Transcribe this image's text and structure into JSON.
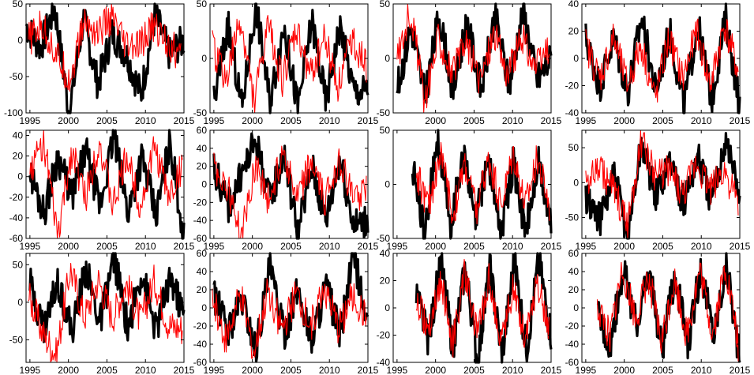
{
  "chart_data": [
    {
      "type": "line",
      "ylim": [
        -100,
        50
      ],
      "yticks": [
        -100,
        -50,
        0,
        50
      ],
      "xlim": [
        1994.5,
        2015
      ],
      "xticks": [
        1995,
        2000,
        2005,
        2010,
        2015
      ],
      "coverage": [
        [
          1994.5,
          2015
        ],
        [
          1994.8,
          2014.6
        ]
      ],
      "series": [
        {
          "color": "#000000",
          "values": [
            20,
            -10,
            45,
            -100,
            30,
            -60,
            10,
            -20,
            -75,
            35,
            -20,
            0
          ]
        },
        {
          "color": "#ff0000",
          "values": [
            0,
            20,
            -20,
            -55,
            25,
            10,
            30,
            -10,
            -10,
            20,
            0,
            -25
          ]
        }
      ]
    },
    {
      "type": "line",
      "ylim": [
        -50,
        50
      ],
      "yticks": [
        -50,
        0,
        50
      ],
      "xlim": [
        1994.5,
        2015
      ],
      "xticks": [
        1995,
        2000,
        2005,
        2010,
        2015
      ],
      "coverage": [
        [
          1995,
          2015
        ],
        [
          1994.8,
          2014.8
        ]
      ],
      "series": [
        {
          "color": "#000000",
          "values": [
            -40,
            30,
            -45,
            50,
            -40,
            30,
            -45,
            35,
            -40,
            30,
            -30,
            -30
          ]
        },
        {
          "color": "#ff0000",
          "values": [
            10,
            -20,
            35,
            -40,
            30,
            -20,
            25,
            -15,
            20,
            -25,
            20,
            -10
          ]
        }
      ]
    },
    {
      "type": "line",
      "ylim": [
        -50,
        50
      ],
      "yticks": [
        -50,
        0,
        50
      ],
      "xlim": [
        1994.5,
        2015
      ],
      "xticks": [
        2000,
        2005,
        2010,
        2015
      ],
      "coverage": [
        [
          1995,
          2015
        ],
        [
          1995,
          2014.8
        ]
      ],
      "series": [
        {
          "color": "#000000",
          "values": [
            -30,
            30,
            -35,
            40,
            -30,
            35,
            -30,
            40,
            -25,
            45,
            -20,
            0
          ]
        },
        {
          "color": "#ff0000",
          "values": [
            0,
            45,
            -40,
            20,
            -15,
            15,
            -20,
            25,
            -15,
            20,
            -10,
            10
          ]
        }
      ]
    },
    {
      "type": "line",
      "ylim": [
        -40,
        40
      ],
      "yticks": [
        -40,
        -20,
        0,
        20,
        40
      ],
      "xlim": [
        1994.5,
        2015
      ],
      "xticks": [
        1995,
        2000,
        2005,
        2010,
        2015
      ],
      "coverage": [
        [
          1995,
          2015
        ],
        [
          1995,
          2014.8
        ]
      ],
      "series": [
        {
          "color": "#000000",
          "values": [
            15,
            -20,
            15,
            -25,
            30,
            -25,
            20,
            -35,
            25,
            -30,
            30,
            -35
          ]
        },
        {
          "color": "#ff0000",
          "values": [
            10,
            -15,
            15,
            -20,
            10,
            -30,
            15,
            -15,
            20,
            -20,
            25,
            -10
          ]
        }
      ]
    },
    {
      "type": "line",
      "ylim": [
        -60,
        45
      ],
      "yticks": [
        -60,
        -40,
        -20,
        0,
        20,
        40
      ],
      "xlim": [
        1994.5,
        2015
      ],
      "xticks": [
        1995,
        2000,
        2005,
        2010,
        2015
      ],
      "coverage": [
        [
          1995,
          2015
        ],
        [
          1995,
          2014.8
        ]
      ],
      "series": [
        {
          "color": "#000000",
          "values": [
            5,
            -35,
            20,
            -20,
            25,
            -30,
            40,
            -35,
            20,
            -40,
            35,
            -60
          ]
        },
        {
          "color": "#ff0000",
          "values": [
            5,
            35,
            -60,
            25,
            -20,
            35,
            -30,
            20,
            -30,
            30,
            -20,
            10
          ]
        }
      ]
    },
    {
      "type": "line",
      "ylim": [
        -60,
        60
      ],
      "yticks": [
        -60,
        -40,
        -20,
        0,
        20,
        40,
        60
      ],
      "xlim": [
        1994.5,
        2015
      ],
      "xticks": [
        1995,
        2000,
        2005,
        2010,
        2015
      ],
      "coverage": [
        [
          1995,
          2015
        ],
        [
          1995,
          2014.8
        ]
      ],
      "series": [
        {
          "color": "#000000",
          "values": [
            20,
            -25,
            10,
            50,
            -20,
            35,
            -55,
            20,
            -40,
            30,
            -45,
            -40
          ]
        },
        {
          "color": "#ff0000",
          "values": [
            20,
            -5,
            -60,
            25,
            -20,
            40,
            -20,
            25,
            -20,
            30,
            -15,
            -5
          ]
        }
      ]
    },
    {
      "type": "line",
      "ylim": [
        -50,
        50
      ],
      "yticks": [
        -50,
        0,
        50
      ],
      "xlim": [
        1994.5,
        2015
      ],
      "xticks": [
        1995,
        2000,
        2005,
        2010,
        2015
      ],
      "coverage": [
        [
          1997,
          2015
        ],
        [
          1997.5,
          2014.8
        ]
      ],
      "series": [
        {
          "color": "#000000",
          "values": [
            15,
            -45,
            45,
            -40,
            30,
            -35,
            25,
            -45,
            20,
            -45,
            20,
            -40
          ]
        },
        {
          "color": "#ff0000",
          "values": [
            10,
            -20,
            30,
            -30,
            20,
            -25,
            25,
            -20,
            30,
            -20,
            25,
            -20
          ]
        }
      ]
    },
    {
      "type": "line",
      "ylim": [
        -80,
        75
      ],
      "yticks": [
        -50,
        0,
        50
      ],
      "xlim": [
        1994.5,
        2015
      ],
      "xticks": [
        1995,
        2000,
        2005,
        2010,
        2015
      ],
      "coverage": [
        [
          1995,
          2015
        ],
        [
          1995,
          2014.8
        ]
      ],
      "series": [
        {
          "color": "#000000",
          "values": [
            -20,
            -55,
            10,
            -75,
            60,
            -20,
            35,
            -30,
            40,
            -30,
            65,
            -20
          ]
        },
        {
          "color": "#ff0000",
          "values": [
            0,
            20,
            -10,
            -60,
            60,
            10,
            20,
            -20,
            30,
            -10,
            20,
            -35
          ]
        }
      ]
    },
    {
      "type": "line",
      "ylim": [
        -80,
        65
      ],
      "yticks": [
        -50,
        0,
        50
      ],
      "xlim": [
        1994.5,
        2015
      ],
      "xticks": [
        1995,
        2000,
        2005,
        2010,
        2015
      ],
      "coverage": [
        [
          1995,
          2015
        ],
        [
          1994.8,
          2014.8
        ]
      ],
      "series": [
        {
          "color": "#000000",
          "values": [
            25,
            -35,
            30,
            -40,
            45,
            -30,
            60,
            -35,
            40,
            -40,
            35,
            -20
          ]
        },
        {
          "color": "#ff0000",
          "values": [
            10,
            -40,
            -70,
            45,
            -20,
            30,
            -20,
            25,
            -25,
            30,
            -30,
            -35
          ]
        }
      ]
    },
    {
      "type": "line",
      "ylim": [
        -60,
        60
      ],
      "yticks": [
        -60,
        -40,
        -20,
        0,
        20,
        40,
        60
      ],
      "xlim": [
        1994.5,
        2015
      ],
      "xticks": [
        1995,
        2000,
        2005,
        2010,
        2015
      ],
      "coverage": [
        [
          1995,
          2015
        ],
        [
          1994.8,
          2014.8
        ]
      ],
      "series": [
        {
          "color": "#000000",
          "values": [
            15,
            -25,
            10,
            -45,
            45,
            -30,
            20,
            -35,
            25,
            -30,
            60,
            -25
          ]
        },
        {
          "color": "#ff0000",
          "values": [
            10,
            -35,
            15,
            -50,
            20,
            -25,
            15,
            -20,
            25,
            -25,
            15,
            -15
          ]
        }
      ]
    },
    {
      "type": "line",
      "ylim": [
        -40,
        40
      ],
      "yticks": [
        -40,
        -20,
        0,
        20,
        40
      ],
      "xlim": [
        1994.5,
        2015
      ],
      "xticks": [
        1995,
        2000,
        2005,
        2010,
        2015
      ],
      "coverage": [
        [
          1997.5,
          2015
        ],
        [
          1997.5,
          2014.8
        ]
      ],
      "series": [
        {
          "color": "#000000",
          "values": [
            10,
            -25,
            35,
            -30,
            30,
            -40,
            30,
            -35,
            35,
            -30,
            35,
            -20
          ]
        },
        {
          "color": "#ff0000",
          "values": [
            5,
            -15,
            20,
            -25,
            25,
            -20,
            20,
            -25,
            15,
            -20,
            20,
            -15
          ]
        }
      ]
    },
    {
      "type": "line",
      "ylim": [
        -60,
        60
      ],
      "yticks": [
        -60,
        -40,
        -20,
        0,
        20,
        40,
        60
      ],
      "xlim": [
        1994.5,
        2015
      ],
      "xticks": [
        1995,
        2000,
        2005,
        2010,
        2015
      ],
      "coverage": [
        [
          1996.5,
          2015
        ],
        [
          1996.5,
          2014.8
        ]
      ],
      "series": [
        {
          "color": "#000000",
          "values": [
            -5,
            -40,
            45,
            -20,
            40,
            -45,
            35,
            -40,
            45,
            -30,
            50,
            -60
          ]
        },
        {
          "color": "#ff0000",
          "values": [
            0,
            -30,
            45,
            -15,
            35,
            -40,
            30,
            -30,
            40,
            -30,
            45,
            -40
          ]
        }
      ]
    }
  ]
}
